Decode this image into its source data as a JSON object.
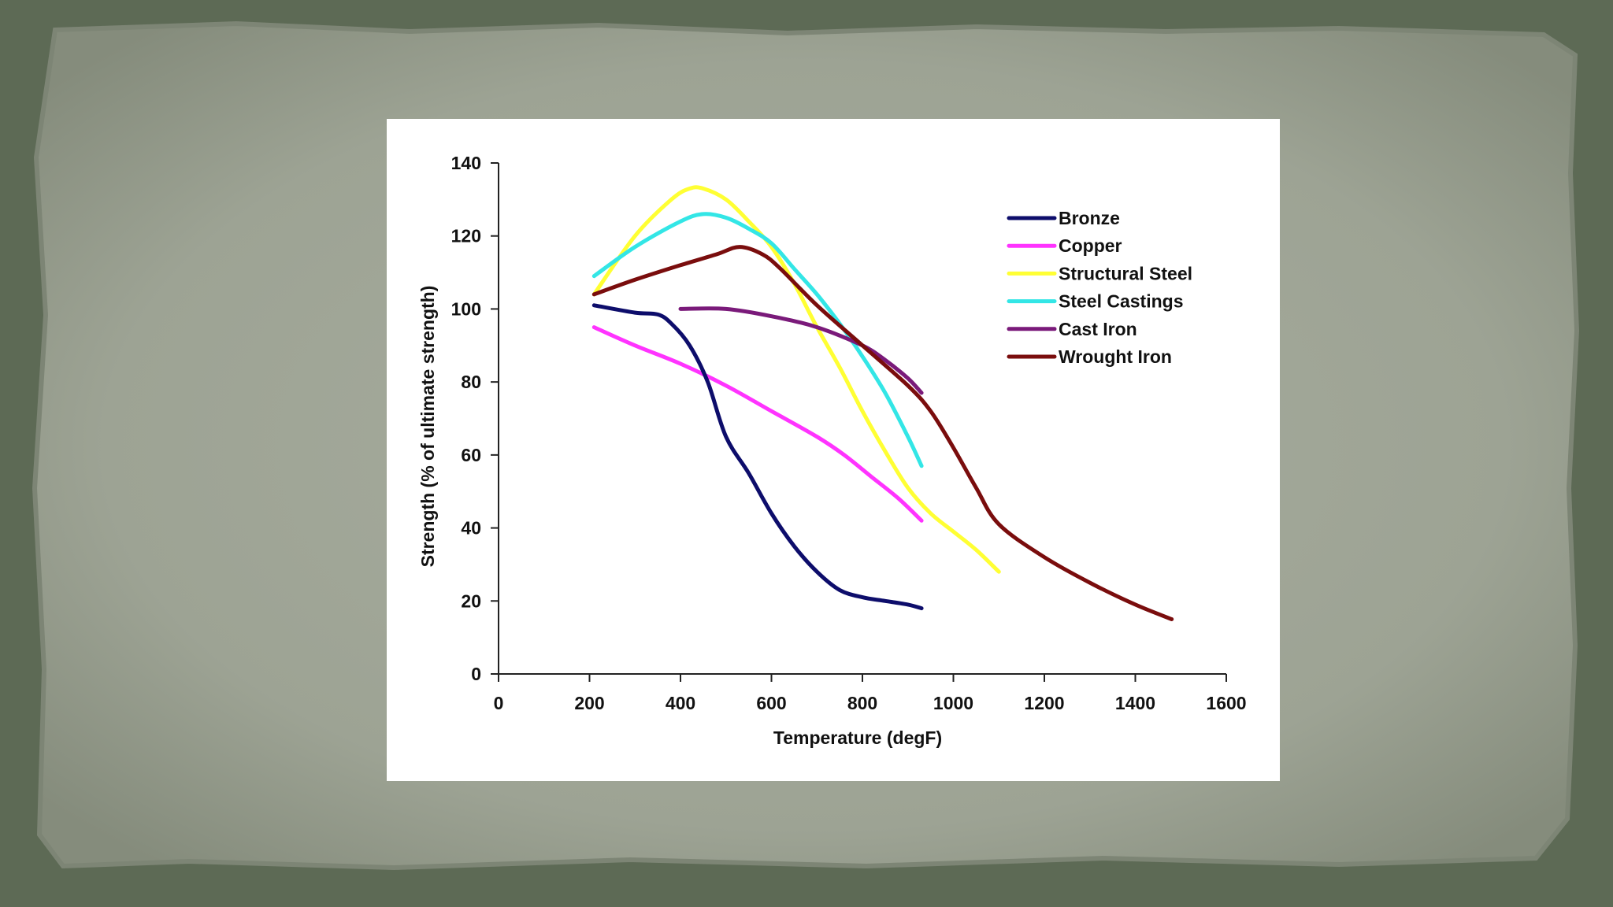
{
  "slide": {
    "background_color": "#5d6a55",
    "paper_color": "#a3a99b"
  },
  "chart_data": {
    "type": "line",
    "title": "",
    "xlabel": "Temperature (degF)",
    "ylabel": "Strength (% of ultimate strength)",
    "xlim": [
      0,
      1600
    ],
    "ylim": [
      0,
      140
    ],
    "xticks": [
      0,
      200,
      400,
      600,
      800,
      1000,
      1200,
      1400,
      1600
    ],
    "yticks": [
      0,
      20,
      40,
      60,
      80,
      100,
      120,
      140
    ],
    "grid": false,
    "legend_position": "top-right",
    "series": [
      {
        "name": "Bronze",
        "color": "#0d0d6b",
        "x": [
          210,
          300,
          350,
          380,
          420,
          460,
          500,
          550,
          600,
          650,
          700,
          750,
          800,
          850,
          900,
          930
        ],
        "y": [
          101,
          99,
          98.5,
          96,
          90,
          80,
          65,
          55,
          44,
          35,
          28,
          23,
          21,
          20,
          19,
          18
        ]
      },
      {
        "name": "Copper",
        "color": "#ff33ff",
        "x": [
          210,
          300,
          400,
          500,
          600,
          700,
          760,
          820,
          880,
          930
        ],
        "y": [
          95,
          90,
          85,
          79,
          72,
          65,
          60,
          54,
          48,
          42
        ]
      },
      {
        "name": "Structural Steel",
        "color": "#ffff33",
        "x": [
          210,
          300,
          380,
          420,
          450,
          500,
          550,
          600,
          650,
          700,
          750,
          800,
          850,
          900,
          950,
          1000,
          1050,
          1100
        ],
        "y": [
          104,
          120,
          130,
          133,
          133,
          130,
          124,
          117,
          107,
          95,
          84,
          72,
          61,
          51,
          44,
          39,
          34,
          28
        ]
      },
      {
        "name": "Steel Castings",
        "color": "#33e6e6",
        "x": [
          210,
          300,
          400,
          450,
          500,
          550,
          600,
          650,
          700,
          750,
          800,
          850,
          900,
          930
        ],
        "y": [
          109,
          117,
          124,
          126,
          125,
          122,
          118,
          111,
          104,
          96,
          87,
          77,
          65,
          57
        ]
      },
      {
        "name": "Cast Iron",
        "color": "#7a1a7a",
        "x": [
          400,
          500,
          600,
          700,
          800,
          850,
          900,
          930
        ],
        "y": [
          100,
          100,
          98,
          95,
          90,
          86,
          81,
          77
        ]
      },
      {
        "name": "Wrought Iron",
        "color": "#7a0d0d",
        "x": [
          210,
          300,
          400,
          480,
          530,
          580,
          620,
          700,
          800,
          900,
          950,
          1000,
          1050,
          1100,
          1200,
          1300,
          1400,
          1480
        ],
        "y": [
          104,
          108,
          112,
          115,
          117,
          115,
          111,
          101,
          90,
          79,
          72,
          62,
          51,
          41,
          32,
          25,
          19,
          15
        ]
      }
    ]
  }
}
